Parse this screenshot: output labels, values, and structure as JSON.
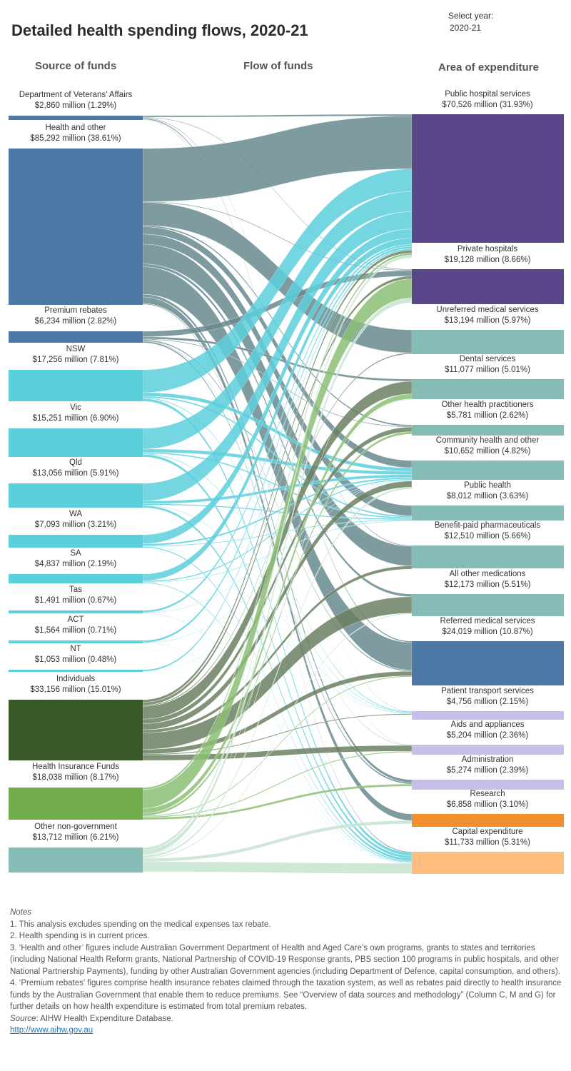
{
  "header": {
    "title": "Detailed health spending flows, 2020-21",
    "year_label": "Select year:",
    "year_value": "2020-21"
  },
  "columns": {
    "source": "Source of funds",
    "flow": "Flow of funds",
    "area": "Area of expenditure"
  },
  "colors": {
    "commonwealth": "#4e79a7",
    "states": "#5bcfdc",
    "individuals": "#3a5a28",
    "health_insurance": "#72ad4c",
    "other_non_gov": "#86bcb6",
    "hospitals": "#59478a",
    "area_default": "#86bcb6",
    "area_lavender": "#c5bfea",
    "research": "#f28e2b",
    "capital": "#ffbe7d"
  },
  "chart_data": {
    "type": "sankey",
    "title": "Detailed health spending flows, 2020-21",
    "units": "million",
    "sources": [
      {
        "name": "Department of Veterans' Affairs",
        "value_label": "$2,860 million (1.29%)",
        "value": 2860,
        "group": "commonwealth"
      },
      {
        "name": "Health and other",
        "value_label": "$85,292 million (38.61%)",
        "value": 85292,
        "group": "commonwealth"
      },
      {
        "name": "Premium rebates",
        "value_label": "$6,234 million (2.82%)",
        "value": 6234,
        "group": "commonwealth"
      },
      {
        "name": "NSW",
        "value_label": "$17,256 million (7.81%)",
        "value": 17256,
        "group": "states"
      },
      {
        "name": "Vic",
        "value_label": "$15,251 million (6.90%)",
        "value": 15251,
        "group": "states"
      },
      {
        "name": "Qld",
        "value_label": "$13,056 million (5.91%)",
        "value": 13056,
        "group": "states"
      },
      {
        "name": "WA",
        "value_label": "$7,093 million (3.21%)",
        "value": 7093,
        "group": "states"
      },
      {
        "name": "SA",
        "value_label": "$4,837 million (2.19%)",
        "value": 4837,
        "group": "states"
      },
      {
        "name": "Tas",
        "value_label": "$1,491 million (0.67%)",
        "value": 1491,
        "group": "states"
      },
      {
        "name": "ACT",
        "value_label": "$1,564 million (0.71%)",
        "value": 1564,
        "group": "states"
      },
      {
        "name": "NT",
        "value_label": "$1,053 million (0.48%)",
        "value": 1053,
        "group": "states"
      },
      {
        "name": "Individuals",
        "value_label": "$33,156 million (15.01%)",
        "value": 33156,
        "group": "individuals"
      },
      {
        "name": "Health Insurance Funds",
        "value_label": "$18,038 million (8.17%)",
        "value": 18038,
        "group": "health_insurance"
      },
      {
        "name": "Other non-government",
        "value_label": "$13,712 million (6.21%)",
        "value": 13712,
        "group": "other_non_gov"
      }
    ],
    "areas": [
      {
        "name": "Public hospital services",
        "value_label": "$70,526 million (31.93%)",
        "value": 70526,
        "color": "hospitals"
      },
      {
        "name": "Private hospitals",
        "value_label": "$19,128 million (8.66%)",
        "value": 19128,
        "color": "hospitals"
      },
      {
        "name": "Unreferred medical services",
        "value_label": "$13,194 million (5.97%)",
        "value": 13194,
        "color": "area_default"
      },
      {
        "name": "Dental services",
        "value_label": "$11,077 million (5.01%)",
        "value": 11077,
        "color": "area_default"
      },
      {
        "name": "Other health practitioners",
        "value_label": "$5,781 million (2.62%)",
        "value": 5781,
        "color": "area_default"
      },
      {
        "name": "Community health and other",
        "value_label": "$10,652 million (4.82%)",
        "value": 10652,
        "color": "area_default"
      },
      {
        "name": "Public health",
        "value_label": "$8,012 million (3.63%)",
        "value": 8012,
        "color": "area_default"
      },
      {
        "name": "Benefit-paid pharmaceuticals",
        "value_label": "$12,510 million (5.66%)",
        "value": 12510,
        "color": "area_default"
      },
      {
        "name": "All other medications",
        "value_label": "$12,173 million (5.51%)",
        "value": 12173,
        "color": "area_default"
      },
      {
        "name": "Referred medical services",
        "value_label": "$24,019 million (10.87%)",
        "value": 24019,
        "color": "commonwealth"
      },
      {
        "name": "Patient transport services",
        "value_label": "$4,756 million (2.15%)",
        "value": 4756,
        "color": "area_lavender"
      },
      {
        "name": "Aids and appliances",
        "value_label": "$5,204 million (2.36%)",
        "value": 5204,
        "color": "area_lavender"
      },
      {
        "name": "Administration",
        "value_label": "$5,274 million (2.39%)",
        "value": 5274,
        "color": "area_lavender"
      },
      {
        "name": "Research",
        "value_label": "$6,858 million (3.10%)",
        "value": 6858,
        "color": "research"
      },
      {
        "name": "Capital expenditure",
        "value_label": "$11,733 million (5.31%)",
        "value": 11733,
        "color": "capital"
      }
    ],
    "links_estimated": [
      [
        0,
        0,
        1000
      ],
      [
        0,
        1,
        400
      ],
      [
        0,
        7,
        400
      ],
      [
        0,
        9,
        700
      ],
      [
        0,
        10,
        200
      ],
      [
        0,
        11,
        160
      ],
      [
        1,
        0,
        29000
      ],
      [
        1,
        1,
        400
      ],
      [
        1,
        2,
        12500
      ],
      [
        1,
        4,
        800
      ],
      [
        1,
        5,
        4000
      ],
      [
        1,
        6,
        5500
      ],
      [
        1,
        7,
        10800
      ],
      [
        1,
        8,
        1500
      ],
      [
        1,
        9,
        15000
      ],
      [
        1,
        12,
        1500
      ],
      [
        1,
        13,
        3500
      ],
      [
        1,
        14,
        500
      ],
      [
        2,
        1,
        3000
      ],
      [
        2,
        3,
        1200
      ],
      [
        2,
        4,
        400
      ],
      [
        2,
        9,
        600
      ],
      [
        2,
        11,
        234
      ],
      [
        2,
        12,
        800
      ],
      [
        3,
        0,
        12500
      ],
      [
        3,
        5,
        2000
      ],
      [
        3,
        6,
        800
      ],
      [
        3,
        10,
        456
      ],
      [
        3,
        14,
        1500
      ],
      [
        4,
        0,
        11000
      ],
      [
        4,
        5,
        1800
      ],
      [
        4,
        6,
        700
      ],
      [
        4,
        10,
        351
      ],
      [
        4,
        14,
        1400
      ],
      [
        5,
        0,
        9500
      ],
      [
        5,
        5,
        1500
      ],
      [
        5,
        6,
        600
      ],
      [
        5,
        10,
        256
      ],
      [
        5,
        14,
        1200
      ],
      [
        6,
        0,
        5000
      ],
      [
        6,
        5,
        900
      ],
      [
        6,
        6,
        400
      ],
      [
        6,
        10,
        193
      ],
      [
        6,
        14,
        600
      ],
      [
        7,
        0,
        3500
      ],
      [
        7,
        5,
        600
      ],
      [
        7,
        6,
        300
      ],
      [
        7,
        14,
        400
      ],
      [
        8,
        0,
        1100
      ],
      [
        8,
        5,
        200
      ],
      [
        8,
        14,
        191
      ],
      [
        9,
        0,
        1200
      ],
      [
        9,
        5,
        200
      ],
      [
        9,
        14,
        164
      ],
      [
        10,
        0,
        800
      ],
      [
        10,
        5,
        150
      ],
      [
        10,
        14,
        103
      ],
      [
        11,
        0,
        1500
      ],
      [
        11,
        1,
        1500
      ],
      [
        11,
        2,
        600
      ],
      [
        11,
        3,
        7000
      ],
      [
        11,
        4,
        2500
      ],
      [
        11,
        5,
        3356
      ],
      [
        11,
        7,
        1700
      ],
      [
        11,
        8,
        9000
      ],
      [
        11,
        9,
        2500
      ],
      [
        11,
        10,
        500
      ],
      [
        11,
        11,
        3000
      ],
      [
        12,
        0,
        1200
      ],
      [
        12,
        1,
        10500
      ],
      [
        12,
        3,
        2800
      ],
      [
        12,
        4,
        1300
      ],
      [
        12,
        9,
        500
      ],
      [
        12,
        11,
        538
      ],
      [
        12,
        12,
        1200
      ],
      [
        13,
        0,
        1500
      ],
      [
        13,
        1,
        2500
      ],
      [
        13,
        2,
        94
      ],
      [
        13,
        3,
        400
      ],
      [
        13,
        5,
        1000
      ],
      [
        13,
        8,
        500
      ],
      [
        13,
        13,
        1800
      ],
      [
        13,
        14,
        5500
      ]
    ]
  },
  "notes": {
    "heading": "Notes",
    "items": [
      "1.   This analysis excludes spending on the medical expenses tax rebate.",
      "2.    Health spending is in current prices.",
      "3.    ‘Health and other’ figures include Australian Government Department of Health and Aged Care’s own programs, grants to states and territories (including National Health Reform grants, National Partnership of COVID-19 Response grants, PBS section 100 programs in public hospitals, and other National Partnership Payments), funding by other Australian Government agencies (including Department of Defence, capital consumption, and others).",
      "4.  ‘Premium rebates’ figures comprise health insurance rebates claimed through the taxation system, as well as rebates paid directly to health insurance funds by the Australian Government that enable them to reduce premiums. See “Overview of data sources and methodology” (Column C, M and G) for further details on how health expenditure is estimated from total premium rebates."
    ],
    "source_label": "Source",
    "source_text": ": AIHW Health Expenditure Database.",
    "link": "http://www.aihw.gov.au"
  }
}
